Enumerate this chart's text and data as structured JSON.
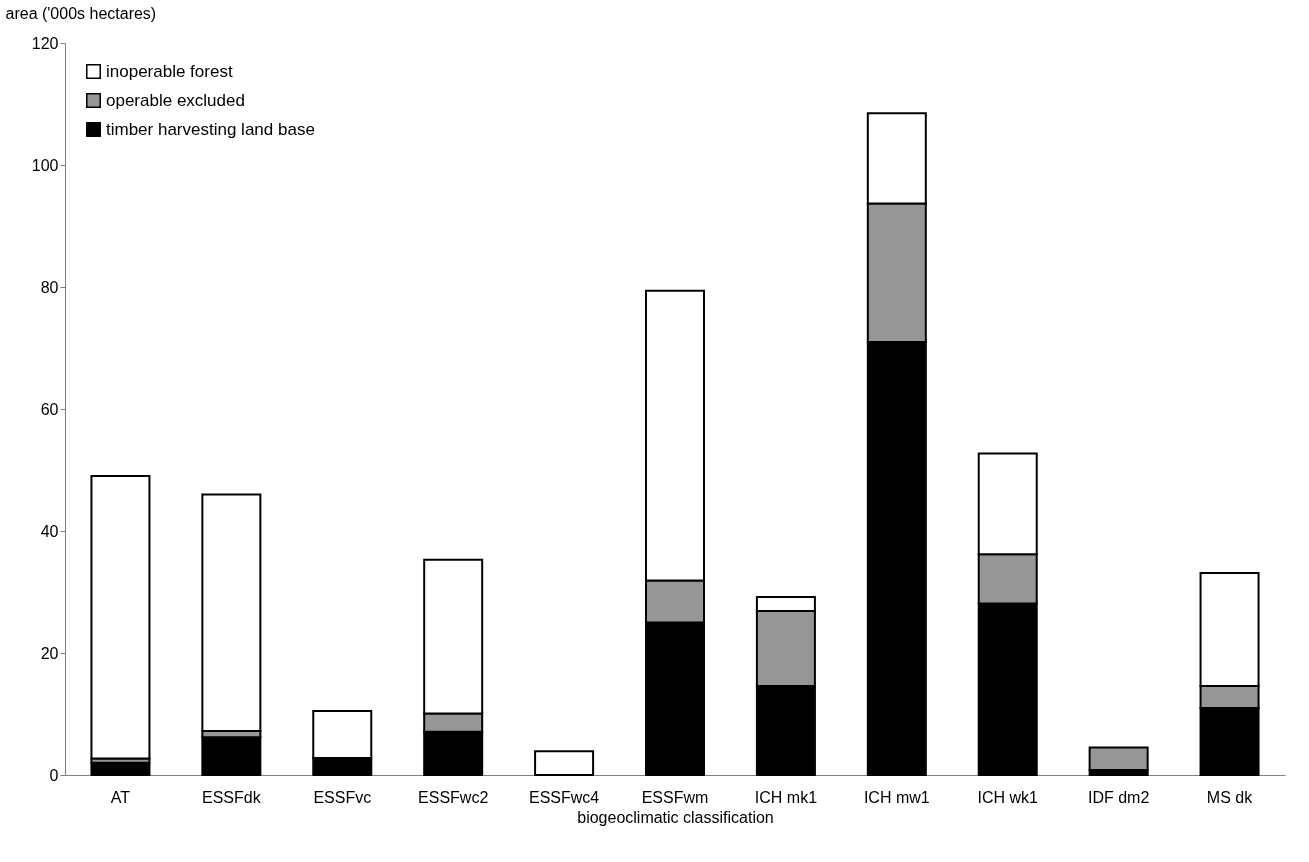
{
  "chart_data": {
    "type": "bar",
    "stacked": true,
    "xlabel": "biogeoclimatic classification",
    "ylabel": "area ('000s hectares)",
    "categories": [
      "AT",
      "ESSFdk",
      "ESSFvc",
      "ESSFwc2",
      "ESSFwc4",
      "ESSFwm",
      "ICH mk1",
      "ICH mw1",
      "ICH wk1",
      "IDF dm2",
      "MS  dk"
    ],
    "series": [
      {
        "name": "timber harvesting land base",
        "color": "#000000",
        "values": [
          2.0,
          6.2,
          2.8,
          7.1,
          0,
          25.0,
          14.6,
          71.0,
          28.1,
          0.8,
          11.0
        ]
      },
      {
        "name": "operable excluded",
        "color": "#969696",
        "values": [
          0.7,
          1.0,
          0,
          3.0,
          0,
          6.9,
          12.3,
          22.7,
          8.1,
          3.7,
          3.6
        ]
      },
      {
        "name": "inoperable forest",
        "color": "#ffffff",
        "values": [
          46.3,
          38.8,
          7.7,
          25.2,
          3.9,
          47.5,
          2.3,
          14.8,
          16.5,
          0,
          18.5
        ]
      }
    ],
    "ylim": [
      0,
      120
    ],
    "yticks": [
      0,
      20,
      40,
      60,
      80,
      100,
      120
    ],
    "grid": false,
    "legend": "top left"
  }
}
